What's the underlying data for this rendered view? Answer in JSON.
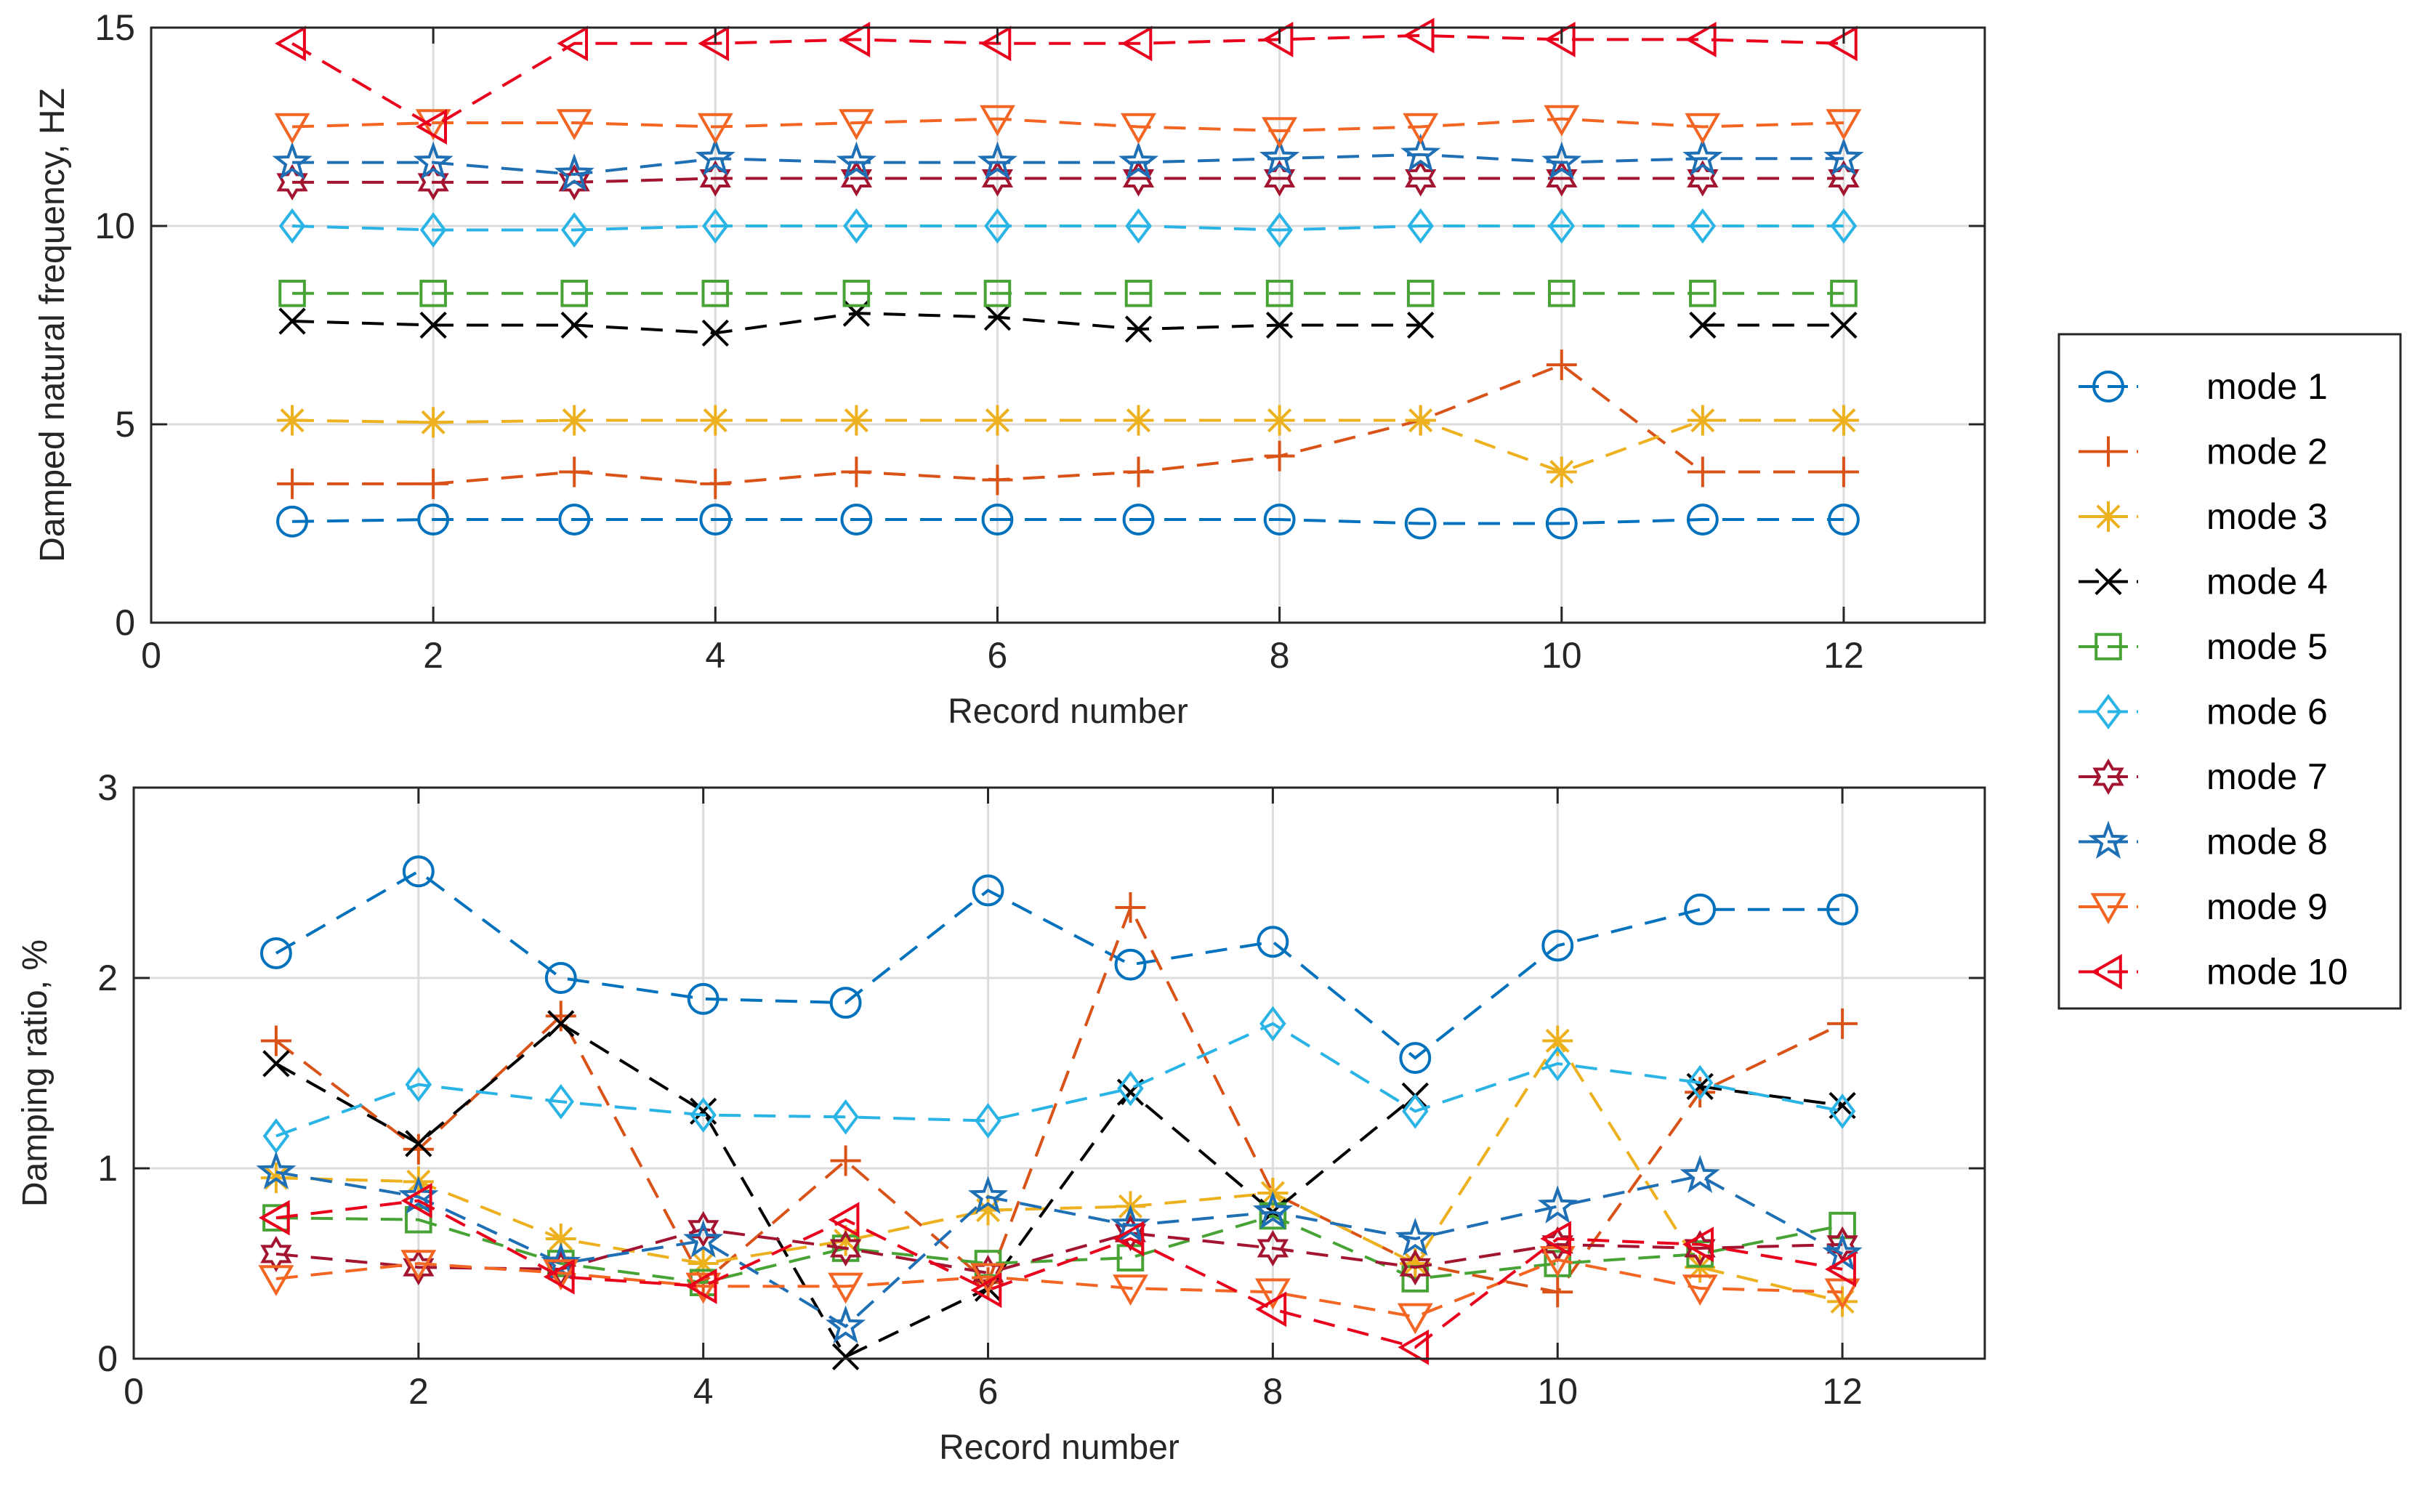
{
  "legend": [
    "mode 1",
    "mode 2",
    "mode 3",
    "mode 4",
    "mode 5",
    "mode 6",
    "mode 7",
    "mode 8",
    "mode 9",
    "mode 10"
  ],
  "colors": [
    "#0072BD",
    "#D95319",
    "#EDB120",
    "#000000",
    "#47A335",
    "#2AB4E6",
    "#A2142F",
    "#1F6FB5",
    "#F26522",
    "#E8001C"
  ],
  "markers": [
    "circle",
    "plus",
    "asterisk",
    "x",
    "square",
    "diamond",
    "hexagram",
    "pentagram",
    "triangle-down",
    "triangle-left"
  ],
  "chart_data": [
    {
      "type": "line",
      "title": "",
      "xlabel": "Record number",
      "ylabel": "Damped natural frequency, HZ",
      "xlim": [
        0,
        13
      ],
      "ylim": [
        0,
        15
      ],
      "xticks": [
        0,
        2,
        4,
        6,
        8,
        10,
        12
      ],
      "yticks": [
        0,
        5,
        10,
        15
      ],
      "grid": true,
      "x": [
        1,
        2,
        3,
        4,
        5,
        6,
        7,
        8,
        9,
        10,
        11,
        12
      ],
      "series": [
        {
          "name": "mode 1",
          "values": [
            2.55,
            2.6,
            2.6,
            2.6,
            2.6,
            2.6,
            2.6,
            2.6,
            2.5,
            2.5,
            2.6,
            2.6
          ]
        },
        {
          "name": "mode 2",
          "values": [
            3.5,
            3.5,
            3.8,
            3.5,
            3.8,
            3.6,
            3.8,
            4.2,
            5.1,
            6.5,
            3.8,
            3.8
          ]
        },
        {
          "name": "mode 3",
          "values": [
            5.1,
            5.05,
            5.1,
            5.1,
            5.1,
            5.1,
            5.1,
            5.1,
            5.1,
            3.8,
            5.1,
            5.1
          ]
        },
        {
          "name": "mode 4",
          "values": [
            7.6,
            7.5,
            7.5,
            7.3,
            7.8,
            7.7,
            7.4,
            7.5,
            7.5,
            null,
            7.5,
            7.5
          ]
        },
        {
          "name": "mode 5",
          "values": [
            8.3,
            8.3,
            8.3,
            8.3,
            8.3,
            8.3,
            8.3,
            8.3,
            8.3,
            8.3,
            8.3,
            8.3
          ]
        },
        {
          "name": "mode 6",
          "values": [
            10.0,
            9.9,
            9.9,
            10.0,
            10.0,
            10.0,
            10.0,
            9.9,
            10.0,
            10.0,
            10.0,
            10.0
          ]
        },
        {
          "name": "mode 7",
          "values": [
            11.1,
            11.1,
            11.1,
            11.2,
            11.2,
            11.2,
            11.2,
            11.2,
            11.2,
            11.2,
            11.2,
            11.2
          ]
        },
        {
          "name": "mode 8",
          "values": [
            11.6,
            11.6,
            11.3,
            11.7,
            11.6,
            11.6,
            11.6,
            11.7,
            11.8,
            11.6,
            11.7,
            11.7
          ]
        },
        {
          "name": "mode 9",
          "values": [
            12.5,
            12.6,
            12.6,
            12.5,
            12.6,
            12.7,
            12.5,
            12.4,
            12.5,
            12.7,
            12.5,
            12.6
          ]
        },
        {
          "name": "mode 10",
          "values": [
            14.6,
            12.5,
            14.6,
            14.6,
            14.7,
            14.6,
            14.6,
            14.7,
            14.8,
            14.7,
            14.7,
            14.6
          ]
        }
      ]
    },
    {
      "type": "line",
      "title": "",
      "xlabel": "Record number",
      "ylabel": "Damping ratio, %",
      "xlim": [
        0,
        13
      ],
      "ylim": [
        0,
        3
      ],
      "xticks": [
        0,
        2,
        4,
        6,
        8,
        10,
        12
      ],
      "yticks": [
        0,
        1,
        2,
        3
      ],
      "grid": true,
      "x": [
        1,
        2,
        3,
        4,
        5,
        6,
        7,
        8,
        9,
        10,
        11,
        12
      ],
      "series": [
        {
          "name": "mode 1",
          "values": [
            2.13,
            2.56,
            2.0,
            1.89,
            1.87,
            2.46,
            2.07,
            2.19,
            1.58,
            2.17,
            2.36,
            2.36
          ]
        },
        {
          "name": "mode 2",
          "values": [
            1.67,
            1.1,
            1.8,
            0.4,
            1.04,
            0.4,
            2.37,
            0.87,
            0.5,
            0.35,
            1.4,
            1.76
          ]
        },
        {
          "name": "mode 3",
          "values": [
            0.95,
            0.93,
            0.63,
            0.5,
            0.62,
            0.78,
            0.8,
            0.87,
            0.5,
            1.67,
            0.48,
            0.3
          ]
        },
        {
          "name": "mode 4",
          "values": [
            1.55,
            1.13,
            1.76,
            1.3,
            0.01,
            0.37,
            1.4,
            0.77,
            1.38,
            null,
            1.43,
            1.33
          ]
        },
        {
          "name": "mode 5",
          "values": [
            0.74,
            0.73,
            0.5,
            0.4,
            0.58,
            0.5,
            0.53,
            0.75,
            0.42,
            0.5,
            0.55,
            0.7
          ]
        },
        {
          "name": "mode 6",
          "values": [
            1.17,
            1.44,
            1.35,
            1.28,
            1.27,
            1.25,
            1.42,
            1.76,
            1.3,
            1.55,
            1.45,
            1.3
          ]
        },
        {
          "name": "mode 7",
          "values": [
            0.55,
            0.48,
            0.47,
            0.68,
            0.58,
            0.45,
            0.66,
            0.58,
            0.48,
            0.6,
            0.58,
            0.6
          ]
        },
        {
          "name": "mode 8",
          "values": [
            0.98,
            0.85,
            0.5,
            0.62,
            0.17,
            0.85,
            0.7,
            0.77,
            0.63,
            0.8,
            0.96,
            0.55
          ]
        },
        {
          "name": "mode 9",
          "values": [
            0.42,
            0.5,
            0.45,
            0.38,
            0.38,
            0.43,
            0.37,
            0.35,
            0.22,
            0.52,
            0.37,
            0.35
          ]
        },
        {
          "name": "mode 10",
          "values": [
            0.74,
            0.83,
            0.43,
            0.38,
            0.73,
            0.36,
            0.63,
            0.26,
            0.06,
            0.63,
            0.6,
            0.47
          ]
        }
      ]
    }
  ]
}
